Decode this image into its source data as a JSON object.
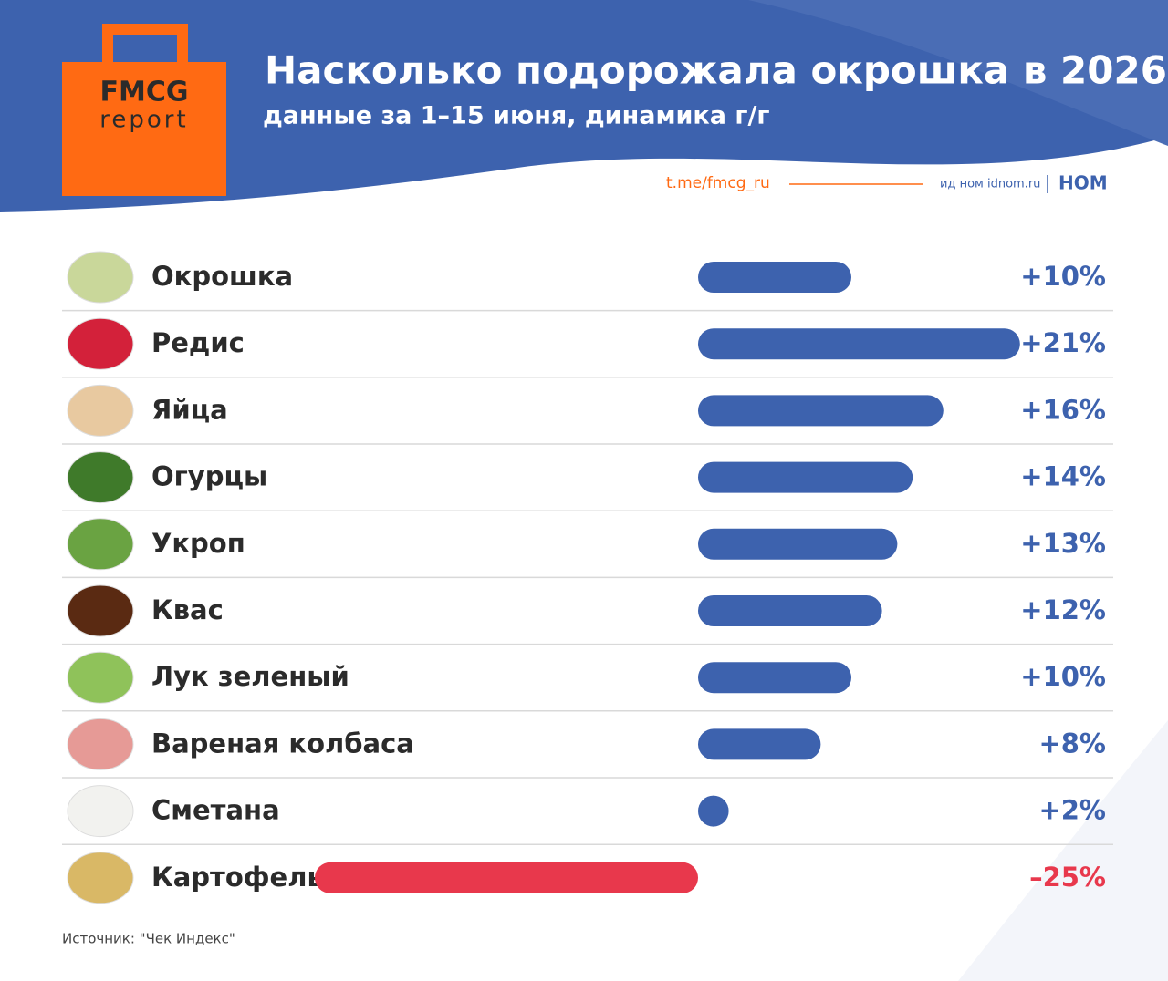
{
  "brand": {
    "top": "FMCG",
    "bottom": "report"
  },
  "link": "t.me/fmcg_ru",
  "partner": {
    "text": "ид ном idnom.ru",
    "logo": "НОМ"
  },
  "source": "Источник: \"Чек Индекс\"",
  "chart_data": {
    "type": "bar",
    "orientation": "horizontal",
    "title": "Насколько подорожала окрошка в 2026",
    "subtitle": "данные за 1–15 июня, динамика г/г",
    "categories": [
      "Окрошка",
      "Редис",
      "Яйца",
      "Огурцы",
      "Укроп",
      "Квас",
      "Лук зеленый",
      "Вареная колбаса",
      "Сметана",
      "Картофель"
    ],
    "values": [
      10,
      21,
      16,
      14,
      13,
      12,
      10,
      8,
      2,
      -25
    ],
    "value_labels": [
      "+10%",
      "+21%",
      "+16%",
      "+14%",
      "+13%",
      "+12%",
      "+10%",
      "+8%",
      "+2%",
      "–25%"
    ],
    "color": "#3d62ae",
    "negative_color": "#e8384c"
  }
}
